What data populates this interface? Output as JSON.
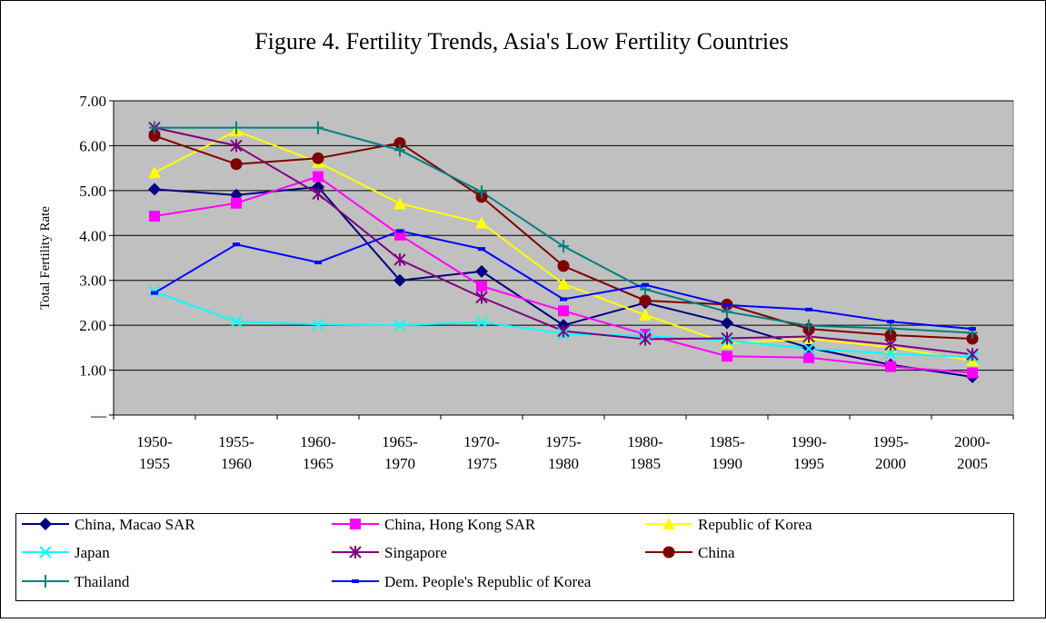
{
  "chart_data": {
    "type": "line",
    "title": "Figure 4. Fertility Trends, Asia's Low Fertility Countries",
    "y_label": "Total Fertility Rate",
    "categories": [
      "1950-1955",
      "1955-1960",
      "1960-1965",
      "1965-1970",
      "1970-1975",
      "1975-1980",
      "1980-1985",
      "1985-1990",
      "1990-1995",
      "1995-2000",
      "2000-2005"
    ],
    "ylim": [
      0,
      7
    ],
    "yticks": [
      {
        "value": 0,
        "label": "—"
      },
      {
        "value": 1,
        "label": "1.00"
      },
      {
        "value": 2,
        "label": "2.00"
      },
      {
        "value": 3,
        "label": "3.00"
      },
      {
        "value": 4,
        "label": "4.00"
      },
      {
        "value": 5,
        "label": "5.00"
      },
      {
        "value": 6,
        "label": "6.00"
      },
      {
        "value": 7,
        "label": "7.00"
      }
    ],
    "grid": true,
    "legend": "bottom",
    "series": [
      {
        "name": "China, Macao SAR",
        "color": "#000080",
        "marker": "diamond",
        "values": [
          5.03,
          4.9,
          5.08,
          3.0,
          3.2,
          2.0,
          2.5,
          2.05,
          1.5,
          1.12,
          0.85
        ]
      },
      {
        "name": "China, Hong Kong SAR",
        "color": "#FF00FF",
        "marker": "square",
        "values": [
          4.43,
          4.72,
          5.31,
          4.01,
          2.87,
          2.32,
          1.8,
          1.31,
          1.28,
          1.08,
          0.94
        ]
      },
      {
        "name": "Republic of Korea",
        "color": "#FFFF00",
        "marker": "triangle",
        "values": [
          5.4,
          6.33,
          5.63,
          4.71,
          4.28,
          2.92,
          2.23,
          1.6,
          1.7,
          1.51,
          1.21
        ]
      },
      {
        "name": "Japan",
        "color": "#00FFFF",
        "marker": "x",
        "values": [
          2.75,
          2.08,
          2.02,
          2.0,
          2.07,
          1.81,
          1.76,
          1.66,
          1.48,
          1.37,
          1.29
        ]
      },
      {
        "name": "Singapore",
        "color": "#800080",
        "marker": "star",
        "values": [
          6.4,
          6.0,
          4.93,
          3.46,
          2.62,
          1.87,
          1.69,
          1.71,
          1.75,
          1.57,
          1.35
        ]
      },
      {
        "name": "China",
        "color": "#800000",
        "marker": "circle",
        "values": [
          6.22,
          5.59,
          5.72,
          6.06,
          4.86,
          3.32,
          2.55,
          2.46,
          1.92,
          1.78,
          1.7
        ]
      },
      {
        "name": "Thailand",
        "color": "#008080",
        "marker": "plus",
        "values": [
          6.4,
          6.4,
          6.4,
          5.9,
          4.97,
          3.76,
          2.8,
          2.3,
          1.99,
          1.93,
          1.83
        ]
      },
      {
        "name": "Dem. People's Republic of Korea",
        "color": "#0000FF",
        "marker": "dash",
        "values": [
          2.72,
          3.8,
          3.4,
          4.1,
          3.7,
          2.58,
          2.9,
          2.45,
          2.35,
          2.08,
          1.92
        ]
      }
    ]
  }
}
